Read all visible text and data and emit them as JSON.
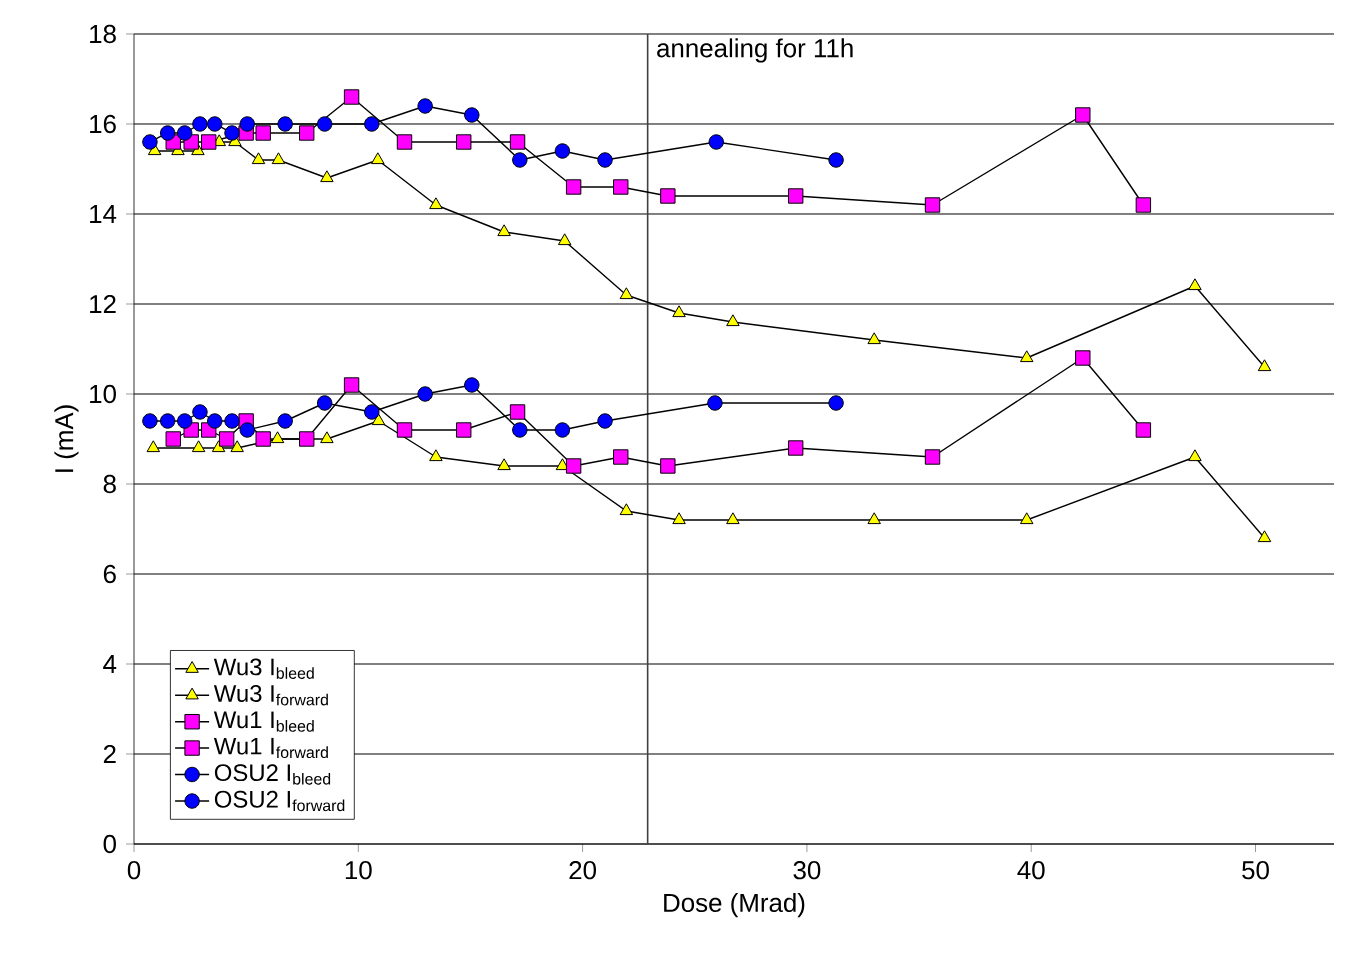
{
  "chart_data": {
    "type": "line",
    "xlabel": "Dose (Mrad)",
    "ylabel": "I (mA)",
    "xlim": [
      0,
      53.5
    ],
    "ylim": [
      0,
      18
    ],
    "xticks": [
      0,
      10,
      20,
      30,
      40,
      50
    ],
    "yticks": [
      0,
      2,
      4,
      6,
      8,
      10,
      12,
      14,
      16,
      18
    ],
    "grid": "y",
    "legend": "bottom left",
    "line_style": "solid",
    "ref_lines": [
      {
        "axis": "x",
        "value": 22.9,
        "label": "annealing for 11h",
        "color": "#404040"
      }
    ],
    "series": [
      {
        "name": "Wu3 I$_{bleed}$",
        "color": "#ffff00",
        "marker": "triangle",
        "x": [
          0.86,
          2.88,
          3.77,
          4.6,
          6.4,
          8.6,
          10.9,
          13.46,
          16.5,
          19.1,
          21.95,
          24.3,
          26.7,
          33.0,
          39.8,
          47.3,
          50.4
        ],
        "values": [
          8.8,
          8.8,
          8.8,
          8.8,
          9.0,
          9.0,
          9.4,
          8.6,
          8.4,
          8.4,
          7.4,
          7.2,
          7.2,
          7.2,
          7.2,
          8.6,
          6.8
        ]
      },
      {
        "name": "Wu3 I$_{forward}$",
        "color": "#ffff00",
        "marker": "triangle",
        "x": [
          0.92,
          1.96,
          2.85,
          3.8,
          4.5,
          5.55,
          6.44,
          8.6,
          10.87,
          13.46,
          16.5,
          19.2,
          21.95,
          24.3,
          26.7,
          33.0,
          39.8,
          47.3,
          50.4
        ],
        "values": [
          15.4,
          15.4,
          15.4,
          15.6,
          15.6,
          15.2,
          15.2,
          14.8,
          15.2,
          14.2,
          13.6,
          13.4,
          12.2,
          11.8,
          11.6,
          11.2,
          10.8,
          12.4,
          10.6
        ]
      },
      {
        "name": "Wu1 I$_{bleed}$",
        "color": "#ff00ff",
        "marker": "square",
        "x": [
          1.75,
          2.55,
          3.33,
          4.13,
          5.0,
          5.76,
          7.7,
          9.7,
          12.06,
          14.7,
          17.1,
          19.6,
          21.7,
          23.8,
          29.5,
          35.6,
          42.3,
          45.0
        ],
        "values": [
          9.0,
          9.2,
          9.2,
          9.0,
          9.4,
          9.0,
          9.0,
          10.2,
          9.2,
          9.2,
          9.6,
          8.4,
          8.6,
          8.4,
          8.8,
          8.6,
          10.8,
          9.2
        ]
      },
      {
        "name": "Wu1 I$_{forward}$",
        "color": "#ff00ff",
        "marker": "square",
        "x": [
          1.75,
          2.55,
          3.33,
          4.13,
          5.0,
          5.76,
          7.7,
          9.7,
          12.06,
          14.7,
          17.1,
          19.6,
          21.7,
          23.8,
          29.5,
          35.6,
          42.3,
          45.0
        ],
        "values": [
          15.6,
          15.6,
          15.6,
          null,
          15.8,
          15.8,
          15.8,
          16.6,
          15.6,
          15.6,
          15.6,
          14.6,
          14.6,
          14.4,
          14.4,
          14.2,
          16.2,
          14.2
        ]
      },
      {
        "name": "OSU2 I$_{bleed}$",
        "color": "#0000ff",
        "marker": "circle",
        "x": [
          0.71,
          1.5,
          2.26,
          2.94,
          3.6,
          4.37,
          5.05,
          6.74,
          8.5,
          10.6,
          12.98,
          15.06,
          17.2,
          19.1,
          21.0,
          25.9,
          31.3
        ],
        "values": [
          9.4,
          9.4,
          9.4,
          9.6,
          9.4,
          9.4,
          9.2,
          9.4,
          9.8,
          9.6,
          10.0,
          10.2,
          9.2,
          9.2,
          9.4,
          9.8,
          9.8
        ]
      },
      {
        "name": "OSU2 I$_{forward}$",
        "color": "#0000ff",
        "marker": "circle",
        "x": [
          0.71,
          1.5,
          2.26,
          2.94,
          3.6,
          4.37,
          5.05,
          6.74,
          8.5,
          10.6,
          12.98,
          15.06,
          17.2,
          19.1,
          21.0,
          25.96,
          31.3
        ],
        "values": [
          15.6,
          15.8,
          15.8,
          16.0,
          16.0,
          15.8,
          16.0,
          16.0,
          16.0,
          16.0,
          16.4,
          16.2,
          15.2,
          15.4,
          15.2,
          15.6,
          15.2
        ]
      }
    ]
  }
}
